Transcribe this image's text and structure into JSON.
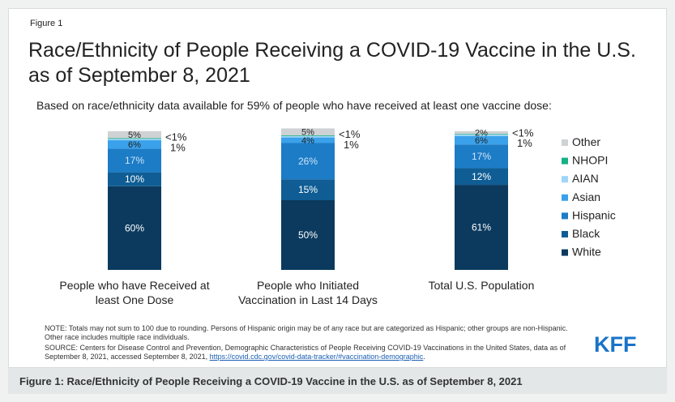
{
  "figure_label": "Figure 1",
  "title": "Race/Ethnicity of People Receiving a COVID-19 Vaccine in the U.S. as of September 8, 2021",
  "subtitle": "Based on race/ethnicity data available for 59% of people who have received at least one vaccine dose:",
  "chart_data": {
    "type": "bar",
    "stacked": true,
    "categories": [
      "People who have Received at least One Dose",
      "People who Initiated Vaccination in Last 14 Days",
      "Total U.S. Population"
    ],
    "series": [
      {
        "name": "White",
        "values": [
          60,
          50,
          61
        ],
        "labels": [
          "60%",
          "50%",
          "61%"
        ],
        "color": "#0b3a5e"
      },
      {
        "name": "Black",
        "values": [
          10,
          15,
          12
        ],
        "labels": [
          "10%",
          "15%",
          "12%"
        ],
        "color": "#0f5d94"
      },
      {
        "name": "Hispanic",
        "values": [
          17,
          26,
          17
        ],
        "labels": [
          "17%",
          "26%",
          "17%"
        ],
        "color": "#1c7cc6"
      },
      {
        "name": "Asian",
        "values": [
          6,
          4,
          6
        ],
        "labels": [
          "6%",
          "4%",
          "6%"
        ],
        "color": "#3aa1ea"
      },
      {
        "name": "AIAN",
        "values": [
          1,
          1,
          1
        ],
        "labels": [
          "1%",
          "1%",
          "1%"
        ],
        "color": "#9fd6f7"
      },
      {
        "name": "NHOPI",
        "values": [
          0.5,
          0.5,
          0.5
        ],
        "labels": [
          "<1%",
          "<1%",
          "<1%"
        ],
        "color": "#15b085"
      },
      {
        "name": "Other",
        "values": [
          5,
          5,
          2
        ],
        "labels": [
          "5%",
          "5%",
          "2%"
        ],
        "color": "#cfd2d4"
      }
    ],
    "legend_order": [
      "Other",
      "NHOPI",
      "AIAN",
      "Asian",
      "Hispanic",
      "Black",
      "White"
    ],
    "legend_position": "right",
    "ylim": [
      0,
      100
    ],
    "grid": false
  },
  "note": "NOTE: Totals may not sum to 100 due to rounding. Persons of Hispanic origin may be of any race but are categorized as Hispanic; other groups are non-Hispanic. Other race includes multiple race individuals.",
  "source_prefix": "SOURCE: Centers for Disease Control and Prevention, Demographic Characteristics of People Receiving COVID-19 Vaccinations in the United States, data as of September 8, 2021, accessed September 8, 2021,",
  "source_link": "https://covid.cdc.gov/covid-data-tracker/#vaccination-demographic",
  "source_suffix": ".",
  "logo_text": "KFF",
  "caption": "Figure 1: Race/Ethnicity of People Receiving a COVID-19 Vaccine in the U.S. as of September 8, 2021",
  "colors": {
    "logo": "#1a73c8",
    "caption_bg": "#e3e7e7",
    "link": "#1a5fb4"
  }
}
